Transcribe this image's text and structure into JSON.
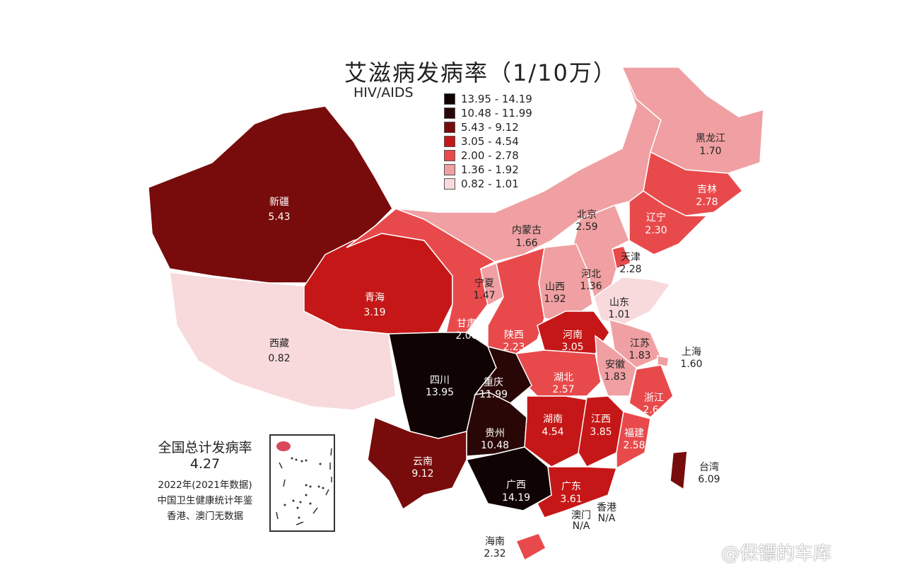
{
  "title": "艾滋病发病率（1/10万）",
  "subtitle": "HIV/AIDS",
  "legend": [
    {
      "label": "13.95 - 14.19",
      "color": "#100303"
    },
    {
      "label": "10.48 - 11.99",
      "color": "#2a0707"
    },
    {
      "label": "5.43 - 9.12",
      "color": "#780b0b"
    },
    {
      "label": "3.05 - 4.54",
      "color": "#c51717"
    },
    {
      "label": "2.00 - 2.78",
      "color": "#e84a4c"
    },
    {
      "label": "1.36 - 1.92",
      "color": "#f0a0a2"
    },
    {
      "label": "0.82 - 1.01",
      "color": "#f8dadc"
    }
  ],
  "national": {
    "label": "全国总计发病率",
    "value": "4.27",
    "notes": [
      "2022年(2021年数据)",
      "中国卫生健康统计年鉴",
      "香港、澳门无数据"
    ]
  },
  "provinces": [
    {
      "id": "xinjiang",
      "name": "新疆",
      "value": "5.43"
    },
    {
      "id": "xizang",
      "name": "西藏",
      "value": "0.82"
    },
    {
      "id": "qinghai",
      "name": "青海",
      "value": "3.19"
    },
    {
      "id": "gansu",
      "name": "甘肃",
      "value": "2.00"
    },
    {
      "id": "neimenggu",
      "name": "内蒙古",
      "value": "1.66"
    },
    {
      "id": "heilongjiang",
      "name": "黑龙江",
      "value": "1.70"
    },
    {
      "id": "jilin",
      "name": "吉林",
      "value": "2.78"
    },
    {
      "id": "liaoning",
      "name": "辽宁",
      "value": "2.30"
    },
    {
      "id": "beijing",
      "name": "北京",
      "value": "2.59"
    },
    {
      "id": "tianjin",
      "name": "天津",
      "value": "2.28"
    },
    {
      "id": "hebei",
      "name": "河北",
      "value": "1.36"
    },
    {
      "id": "shanxi",
      "name": "山西",
      "value": "1.92"
    },
    {
      "id": "shandong",
      "name": "山东",
      "value": "1.01"
    },
    {
      "id": "ningxia",
      "name": "宁夏",
      "value": "1.47"
    },
    {
      "id": "shaanxi",
      "name": "陕西",
      "value": "2.23"
    },
    {
      "id": "henan",
      "name": "河南",
      "value": "3.05"
    },
    {
      "id": "jiangsu",
      "name": "江苏",
      "value": "1.83"
    },
    {
      "id": "shanghai",
      "name": "上海",
      "value": "1.60"
    },
    {
      "id": "anhui",
      "name": "安徽",
      "value": "1.83"
    },
    {
      "id": "hubei",
      "name": "湖北",
      "value": "2.57"
    },
    {
      "id": "zhejiang",
      "name": "浙江",
      "value": "2.64"
    },
    {
      "id": "sichuan",
      "name": "四川",
      "value": "13.95"
    },
    {
      "id": "chongqing",
      "name": "重庆",
      "value": "11.99"
    },
    {
      "id": "guizhou",
      "name": "贵州",
      "value": "10.48"
    },
    {
      "id": "yunnan",
      "name": "云南",
      "value": "9.12"
    },
    {
      "id": "guangxi",
      "name": "广西",
      "value": "14.19"
    },
    {
      "id": "hunan",
      "name": "湖南",
      "value": "4.54"
    },
    {
      "id": "jiangxi",
      "name": "江西",
      "value": "3.85"
    },
    {
      "id": "fujian",
      "name": "福建",
      "value": "2.58"
    },
    {
      "id": "guangdong",
      "name": "广东",
      "value": "3.61"
    },
    {
      "id": "hainan",
      "name": "海南",
      "value": "2.32"
    },
    {
      "id": "taiwan",
      "name": "台湾",
      "value": "6.09"
    },
    {
      "id": "aomen",
      "name": "澳门",
      "value": "N/A"
    },
    {
      "id": "xianggang",
      "name": "香港",
      "value": "N/A"
    }
  ],
  "watermark": "@保镖的车库"
}
